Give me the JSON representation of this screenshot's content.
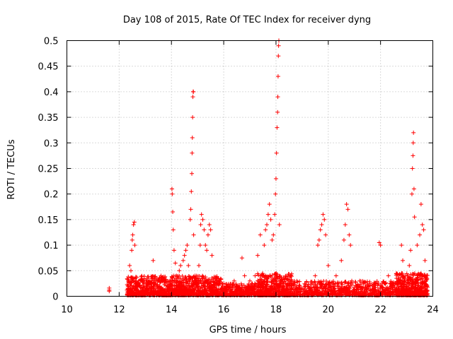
{
  "chart_data": {
    "type": "scatter",
    "title": "Day 108 of 2015, Rate Of TEC Index for receiver dyng",
    "xlabel": "GPS time / hours",
    "ylabel": "ROTI / TECUs",
    "xlim": [
      10,
      24
    ],
    "ylim": [
      0,
      0.5
    ],
    "xticks": [
      10,
      12,
      14,
      16,
      18,
      20,
      22,
      24
    ],
    "yticks": [
      0,
      0.05,
      0.1,
      0.15,
      0.2,
      0.25,
      0.3,
      0.35,
      0.4,
      0.45,
      0.5
    ],
    "grid": true,
    "marker": "+",
    "color": "#ff0000",
    "series": [
      {
        "points": [
          [
            11.62,
            0.012
          ],
          [
            11.62,
            0.016
          ],
          [
            11.62,
            0.01
          ],
          [
            12.3,
            0.012
          ],
          [
            12.35,
            0.02
          ],
          [
            12.4,
            0.06
          ],
          [
            12.45,
            0.05
          ],
          [
            12.48,
            0.09
          ],
          [
            12.5,
            0.11
          ],
          [
            12.52,
            0.12
          ],
          [
            12.55,
            0.14
          ],
          [
            12.58,
            0.145
          ],
          [
            12.6,
            0.1
          ],
          [
            12.65,
            0.03
          ],
          [
            12.75,
            0.025
          ],
          [
            12.9,
            0.03
          ],
          [
            13.1,
            0.035
          ],
          [
            13.3,
            0.07
          ],
          [
            13.4,
            0.03
          ],
          [
            13.6,
            0.04
          ],
          [
            13.8,
            0.03
          ],
          [
            13.95,
            0.03
          ],
          [
            14.02,
            0.21
          ],
          [
            14.03,
            0.2
          ],
          [
            14.05,
            0.165
          ],
          [
            14.07,
            0.13
          ],
          [
            14.1,
            0.09
          ],
          [
            14.15,
            0.065
          ],
          [
            14.2,
            0.04
          ],
          [
            14.3,
            0.05
          ],
          [
            14.35,
            0.06
          ],
          [
            14.45,
            0.07
          ],
          [
            14.5,
            0.08
          ],
          [
            14.55,
            0.09
          ],
          [
            14.6,
            0.1
          ],
          [
            14.65,
            0.06
          ],
          [
            14.72,
            0.15
          ],
          [
            14.74,
            0.17
          ],
          [
            14.76,
            0.205
          ],
          [
            14.78,
            0.24
          ],
          [
            14.79,
            0.28
          ],
          [
            14.8,
            0.31
          ],
          [
            14.81,
            0.35
          ],
          [
            14.82,
            0.39
          ],
          [
            14.83,
            0.4
          ],
          [
            14.84,
            0.4
          ],
          [
            14.85,
            0.12
          ],
          [
            14.9,
            0.04
          ],
          [
            15.05,
            0.06
          ],
          [
            15.1,
            0.1
          ],
          [
            15.12,
            0.14
          ],
          [
            15.15,
            0.16
          ],
          [
            15.2,
            0.15
          ],
          [
            15.25,
            0.13
          ],
          [
            15.3,
            0.1
          ],
          [
            15.35,
            0.09
          ],
          [
            15.4,
            0.12
          ],
          [
            15.45,
            0.14
          ],
          [
            15.5,
            0.13
          ],
          [
            15.55,
            0.08
          ],
          [
            15.6,
            0.03
          ],
          [
            15.8,
            0.025
          ],
          [
            16.1,
            0.02
          ],
          [
            16.4,
            0.03
          ],
          [
            16.7,
            0.075
          ],
          [
            16.8,
            0.04
          ],
          [
            17.0,
            0.03
          ],
          [
            17.2,
            0.04
          ],
          [
            17.3,
            0.08
          ],
          [
            17.4,
            0.12
          ],
          [
            17.55,
            0.1
          ],
          [
            17.6,
            0.13
          ],
          [
            17.65,
            0.14
          ],
          [
            17.7,
            0.16
          ],
          [
            17.75,
            0.18
          ],
          [
            17.8,
            0.15
          ],
          [
            17.85,
            0.11
          ],
          [
            17.9,
            0.12
          ],
          [
            17.95,
            0.16
          ],
          [
            17.98,
            0.2
          ],
          [
            18.0,
            0.23
          ],
          [
            18.02,
            0.28
          ],
          [
            18.04,
            0.33
          ],
          [
            18.06,
            0.36
          ],
          [
            18.07,
            0.39
          ],
          [
            18.08,
            0.43
          ],
          [
            18.09,
            0.47
          ],
          [
            18.1,
            0.49
          ],
          [
            18.11,
            0.5
          ],
          [
            18.13,
            0.14
          ],
          [
            18.2,
            0.03
          ],
          [
            18.4,
            0.015
          ],
          [
            18.8,
            0.015
          ],
          [
            19.2,
            0.02
          ],
          [
            19.5,
            0.04
          ],
          [
            19.6,
            0.1
          ],
          [
            19.65,
            0.11
          ],
          [
            19.7,
            0.13
          ],
          [
            19.75,
            0.14
          ],
          [
            19.8,
            0.16
          ],
          [
            19.85,
            0.15
          ],
          [
            19.9,
            0.12
          ],
          [
            20.0,
            0.06
          ],
          [
            20.3,
            0.04
          ],
          [
            20.5,
            0.07
          ],
          [
            20.6,
            0.11
          ],
          [
            20.65,
            0.14
          ],
          [
            20.7,
            0.18
          ],
          [
            20.75,
            0.17
          ],
          [
            20.8,
            0.12
          ],
          [
            20.85,
            0.1
          ],
          [
            20.9,
            0.03
          ],
          [
            21.2,
            0.03
          ],
          [
            21.5,
            0.02
          ],
          [
            21.95,
            0.105
          ],
          [
            22.0,
            0.1
          ],
          [
            22.3,
            0.04
          ],
          [
            22.5,
            0.02
          ],
          [
            22.8,
            0.1
          ],
          [
            22.85,
            0.07
          ],
          [
            22.95,
            0.04
          ],
          [
            23.1,
            0.06
          ],
          [
            23.15,
            0.09
          ],
          [
            23.2,
            0.2
          ],
          [
            23.22,
            0.25
          ],
          [
            23.24,
            0.275
          ],
          [
            23.25,
            0.3
          ],
          [
            23.26,
            0.32
          ],
          [
            23.28,
            0.21
          ],
          [
            23.3,
            0.155
          ],
          [
            23.4,
            0.1
          ],
          [
            23.5,
            0.12
          ],
          [
            23.55,
            0.18
          ],
          [
            23.6,
            0.14
          ],
          [
            23.65,
            0.13
          ],
          [
            23.7,
            0.07
          ]
        ]
      }
    ],
    "dense_noise": {
      "segments": [
        {
          "x_range": [
            12.3,
            15.9
          ],
          "y_range": [
            0.002,
            0.04
          ],
          "count": 1100
        },
        {
          "x_range": [
            15.9,
            17.3
          ],
          "y_range": [
            0.002,
            0.025
          ],
          "count": 300
        },
        {
          "x_range": [
            17.3,
            18.6
          ],
          "y_range": [
            0.002,
            0.045
          ],
          "count": 450
        },
        {
          "x_range": [
            18.6,
            22.6
          ],
          "y_range": [
            0.002,
            0.03
          ],
          "count": 700
        },
        {
          "x_range": [
            22.6,
            23.8
          ],
          "y_range": [
            0.002,
            0.045
          ],
          "count": 500
        }
      ]
    }
  }
}
